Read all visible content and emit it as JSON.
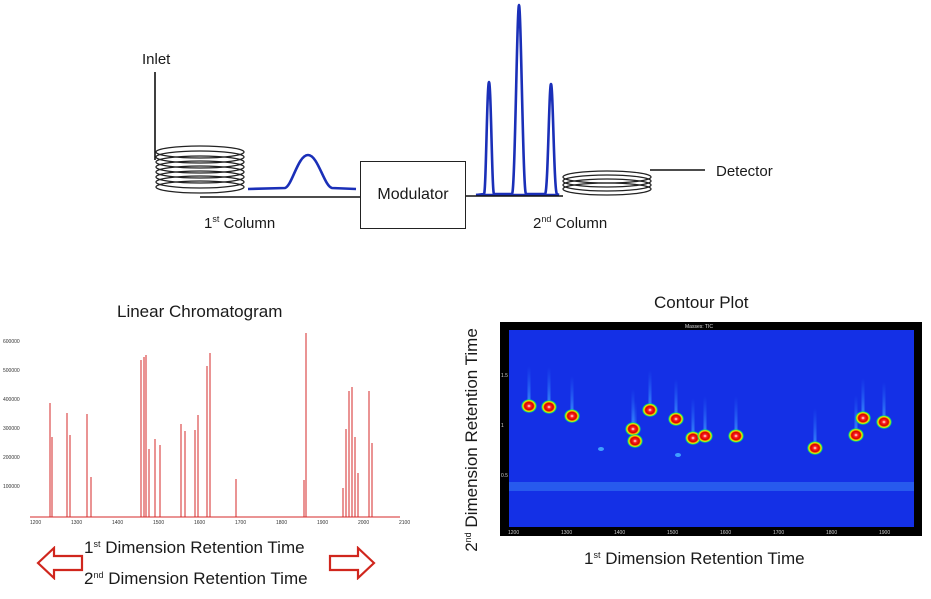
{
  "schematic": {
    "inlet": "Inlet",
    "detector": "Detector",
    "modulator": "Modulator",
    "column1_num": "1",
    "column1_sup": "st",
    "column1_text": " Column",
    "column2_num": "2",
    "column2_sup": "nd",
    "column2_text": " Column"
  },
  "linear": {
    "title": "Linear Chromatogram",
    "y_ticks": [
      "600000",
      "500000",
      "400000",
      "300000",
      "200000",
      "100000"
    ],
    "x_ticks": [
      "1200",
      "1300",
      "1400",
      "1500",
      "1600",
      "1700",
      "1800",
      "1900",
      "2000",
      "2100"
    ],
    "color": "#d62828"
  },
  "contour": {
    "title": "Contour Plot",
    "header": "Masses: TIC",
    "y_ticks": [
      "1.5",
      "1",
      "0.5"
    ],
    "x_ticks": [
      "1200",
      "1300",
      "1400",
      "1500",
      "1600",
      "1700",
      "1800",
      "1900"
    ],
    "ylabel_num": "2",
    "ylabel_sup": "nd",
    "ylabel_text": " Dimension Retention Time",
    "xlabel_num": "1",
    "xlabel_sup": "st",
    "xlabel_text": " Dimension Retention Time",
    "bg_color": "#1430e6"
  },
  "bottom_labels": {
    "line1_num": "1",
    "line1_sup": "st",
    "line1_text": " Dimension Retention Time",
    "line2_num": "2",
    "line2_sup": "nd",
    "line2_text": " Dimension Retention Time"
  },
  "colors": {
    "peak_blue": "#1a2fb8",
    "arrow_red": "#d0261d"
  }
}
